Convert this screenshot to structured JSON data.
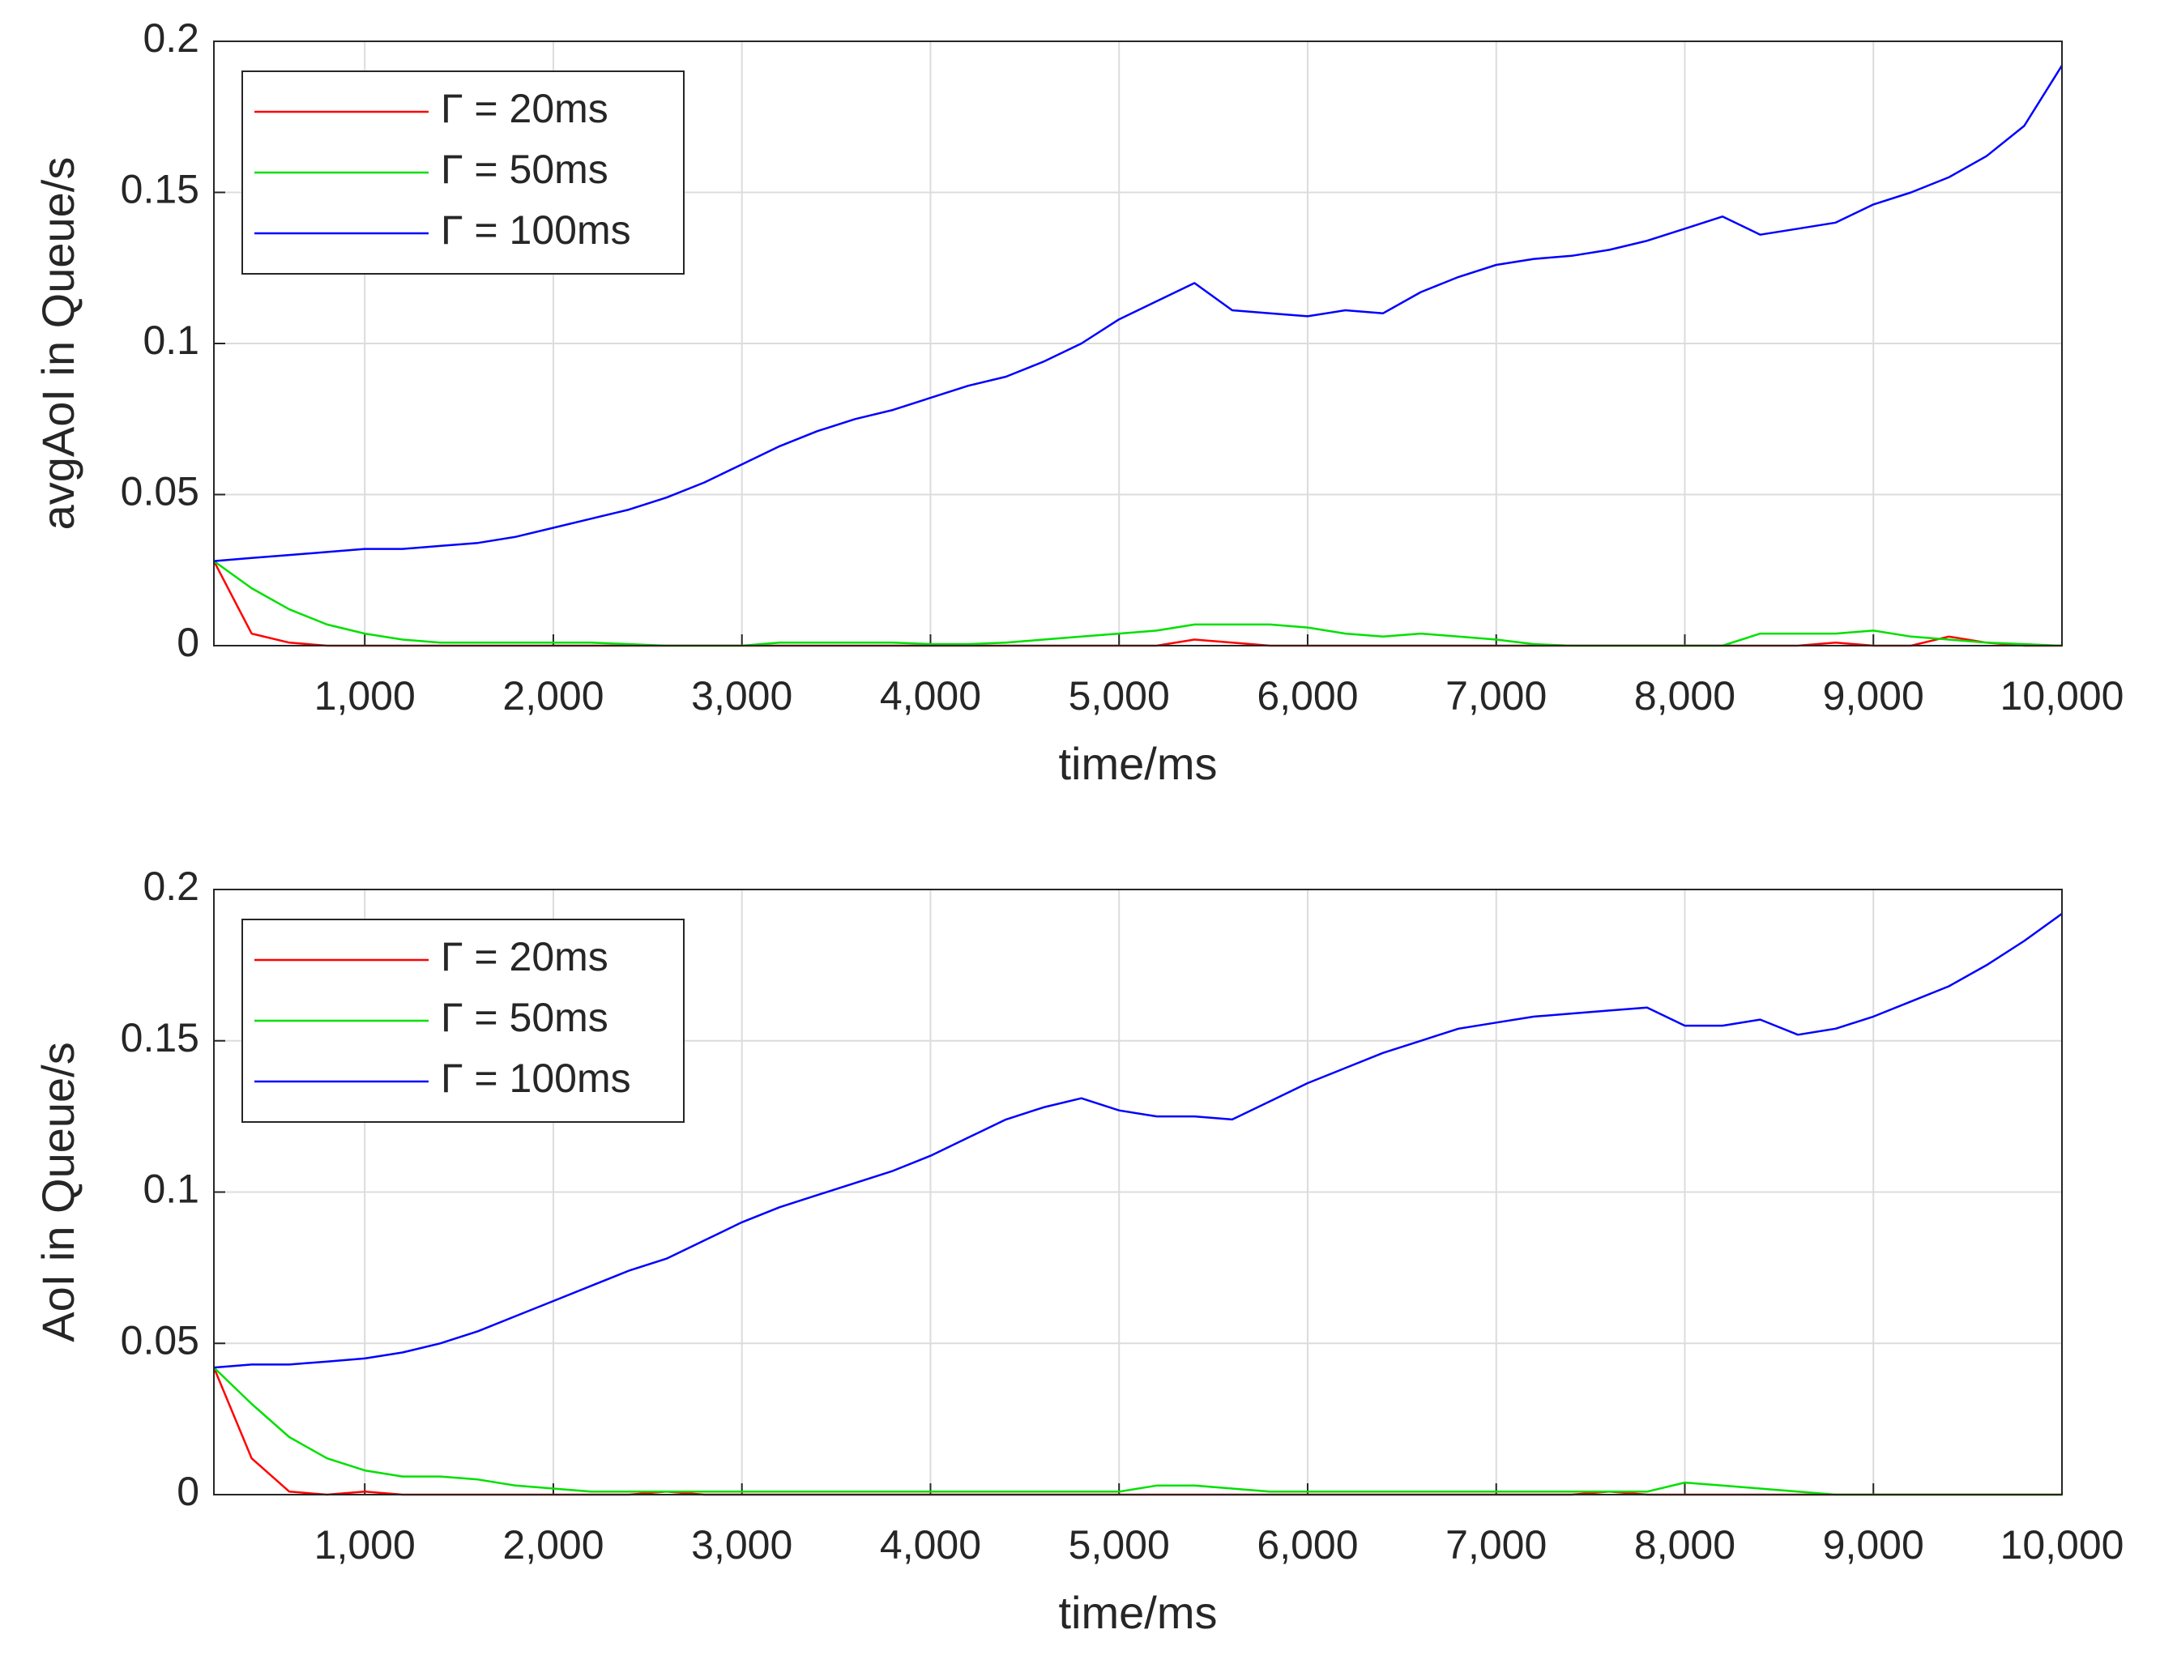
{
  "chart_data": [
    {
      "type": "line",
      "ylabel": "avgAoI in Queue/s",
      "xlabel": "time/ms",
      "x": [
        200,
        400,
        600,
        800,
        1000,
        1200,
        1400,
        1600,
        1800,
        2000,
        2200,
        2400,
        2600,
        2800,
        3000,
        3200,
        3400,
        3600,
        3800,
        4000,
        4200,
        4400,
        4600,
        4800,
        5000,
        5200,
        5400,
        5600,
        5800,
        6000,
        6200,
        6400,
        6600,
        6800,
        7000,
        7200,
        7400,
        7600,
        7800,
        8000,
        8200,
        8400,
        8600,
        8800,
        9000,
        9200,
        9400,
        9600,
        9800,
        10000
      ],
      "xlim": [
        200,
        10000
      ],
      "xticks": [
        {
          "value": 1000,
          "label": "1,000"
        },
        {
          "value": 2000,
          "label": "2,000"
        },
        {
          "value": 3000,
          "label": "3,000"
        },
        {
          "value": 4000,
          "label": "4,000"
        },
        {
          "value": 5000,
          "label": "5,000"
        },
        {
          "value": 6000,
          "label": "6,000"
        },
        {
          "value": 7000,
          "label": "7,000"
        },
        {
          "value": 8000,
          "label": "8,000"
        },
        {
          "value": 9000,
          "label": "9,000"
        },
        {
          "value": 10000,
          "label": "10,000"
        }
      ],
      "ylim": [
        0,
        0.2
      ],
      "yticks": [
        0,
        0.05,
        0.1,
        0.15,
        0.2
      ],
      "grid": true,
      "legend": "top-left",
      "series": [
        {
          "name": "Γ = 20ms",
          "color": "#ff0000",
          "values": [
            0.028,
            0.004,
            0.001,
            0,
            0,
            0,
            0,
            0,
            0,
            0,
            0,
            0,
            0,
            0,
            0,
            0,
            0,
            0,
            0,
            0,
            0,
            0,
            0,
            0,
            0,
            0,
            0.002,
            0.001,
            0,
            0,
            0,
            0,
            0,
            0,
            0,
            0,
            0,
            0,
            0,
            0,
            0,
            0,
            0,
            0.001,
            0,
            0,
            0.003,
            0.001,
            0,
            0
          ]
        },
        {
          "name": "Γ = 50ms",
          "color": "#00e000",
          "values": [
            0.028,
            0.019,
            0.012,
            0.007,
            0.004,
            0.002,
            0.001,
            0.001,
            0.001,
            0.001,
            0.001,
            0.0005,
            0,
            0,
            0,
            0.001,
            0.001,
            0.001,
            0.001,
            0.0005,
            0.0005,
            0.001,
            0.002,
            0.003,
            0.004,
            0.005,
            0.007,
            0.007,
            0.007,
            0.006,
            0.004,
            0.003,
            0.004,
            0.003,
            0.002,
            0.0005,
            0,
            0,
            0,
            0,
            0,
            0.004,
            0.004,
            0.004,
            0.005,
            0.003,
            0.002,
            0.001,
            0.0005,
            0
          ]
        },
        {
          "name": "Γ = 100ms",
          "color": "#0000ff",
          "values": [
            0.028,
            0.029,
            0.03,
            0.031,
            0.032,
            0.032,
            0.033,
            0.034,
            0.036,
            0.039,
            0.042,
            0.045,
            0.049,
            0.054,
            0.06,
            0.066,
            0.071,
            0.075,
            0.078,
            0.082,
            0.086,
            0.089,
            0.094,
            0.1,
            0.108,
            0.114,
            0.12,
            0.111,
            0.11,
            0.109,
            0.111,
            0.11,
            0.117,
            0.122,
            0.126,
            0.128,
            0.129,
            0.131,
            0.134,
            0.138,
            0.142,
            0.136,
            0.138,
            0.14,
            0.146,
            0.15,
            0.155,
            0.162,
            0.172,
            0.192
          ]
        }
      ]
    },
    {
      "type": "line",
      "ylabel": "AoI in Queue/s",
      "xlabel": "time/ms",
      "x": [
        200,
        400,
        600,
        800,
        1000,
        1200,
        1400,
        1600,
        1800,
        2000,
        2200,
        2400,
        2600,
        2800,
        3000,
        3200,
        3400,
        3600,
        3800,
        4000,
        4200,
        4400,
        4600,
        4800,
        5000,
        5200,
        5400,
        5600,
        5800,
        6000,
        6200,
        6400,
        6600,
        6800,
        7000,
        7200,
        7400,
        7600,
        7800,
        8000,
        8200,
        8400,
        8600,
        8800,
        9000,
        9200,
        9400,
        9600,
        9800,
        10000
      ],
      "xlim": [
        200,
        10000
      ],
      "xticks": [
        {
          "value": 1000,
          "label": "1,000"
        },
        {
          "value": 2000,
          "label": "2,000"
        },
        {
          "value": 3000,
          "label": "3,000"
        },
        {
          "value": 4000,
          "label": "4,000"
        },
        {
          "value": 5000,
          "label": "5,000"
        },
        {
          "value": 6000,
          "label": "6,000"
        },
        {
          "value": 7000,
          "label": "7,000"
        },
        {
          "value": 8000,
          "label": "8,000"
        },
        {
          "value": 9000,
          "label": "9,000"
        },
        {
          "value": 10000,
          "label": "10,000"
        }
      ],
      "ylim": [
        0,
        0.2
      ],
      "yticks": [
        0,
        0.05,
        0.1,
        0.15,
        0.2
      ],
      "grid": true,
      "legend": "top-left",
      "series": [
        {
          "name": "Γ = 20ms",
          "color": "#ff0000",
          "values": [
            0.042,
            0.012,
            0.001,
            0,
            0.001,
            0,
            0,
            0,
            0,
            0,
            0,
            0,
            0.001,
            0,
            0,
            0,
            0,
            0,
            0,
            0,
            0,
            0,
            0,
            0,
            0,
            0,
            0,
            0,
            0,
            0,
            0,
            0,
            0,
            0,
            0,
            0,
            0,
            0.001,
            0,
            0,
            0,
            0,
            0,
            0,
            0,
            0,
            0,
            0,
            0,
            0
          ]
        },
        {
          "name": "Γ = 50ms",
          "color": "#00e000",
          "values": [
            0.042,
            0.03,
            0.019,
            0.012,
            0.008,
            0.006,
            0.006,
            0.005,
            0.003,
            0.002,
            0.001,
            0.001,
            0.001,
            0.001,
            0.001,
            0.001,
            0.001,
            0.001,
            0.001,
            0.001,
            0.001,
            0.001,
            0.001,
            0.001,
            0.001,
            0.003,
            0.003,
            0.002,
            0.001,
            0.001,
            0.001,
            0.001,
            0.001,
            0.001,
            0.001,
            0.001,
            0.001,
            0.001,
            0.001,
            0.004,
            0.003,
            0.002,
            0.001,
            0,
            0,
            0,
            0,
            0,
            0,
            0
          ]
        },
        {
          "name": "Γ = 100ms",
          "color": "#0000ff",
          "values": [
            0.042,
            0.043,
            0.043,
            0.044,
            0.045,
            0.047,
            0.05,
            0.054,
            0.059,
            0.064,
            0.069,
            0.074,
            0.078,
            0.084,
            0.09,
            0.095,
            0.099,
            0.103,
            0.107,
            0.112,
            0.118,
            0.124,
            0.128,
            0.131,
            0.127,
            0.125,
            0.125,
            0.124,
            0.13,
            0.136,
            0.141,
            0.146,
            0.15,
            0.154,
            0.156,
            0.158,
            0.159,
            0.16,
            0.161,
            0.155,
            0.155,
            0.157,
            0.152,
            0.154,
            0.158,
            0.163,
            0.168,
            0.175,
            0.183,
            0.192
          ]
        }
      ]
    }
  ]
}
